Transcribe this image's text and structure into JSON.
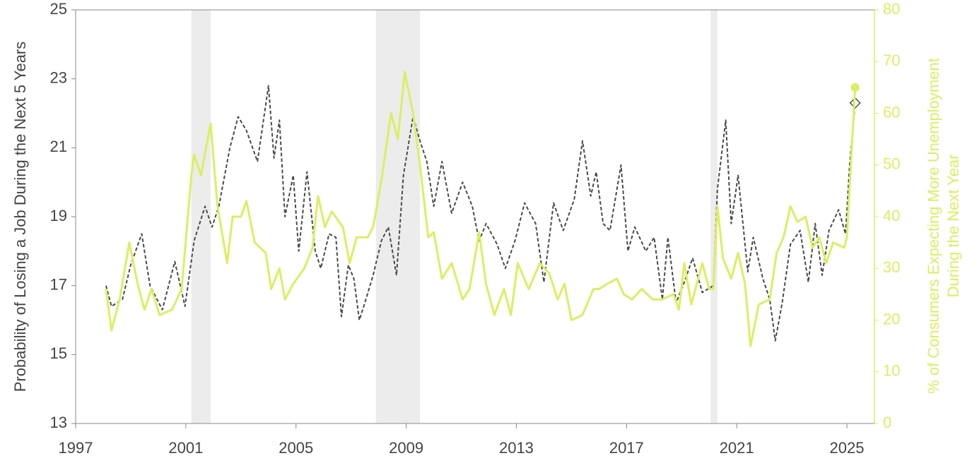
{
  "chart_data": {
    "type": "line",
    "ylabel": "Probability of Losing a Job During the Next 5 Years",
    "y2label": [
      "% of Consumers Expecting More Unemployment",
      "During the Next Year"
    ],
    "xlim": [
      1997,
      2026
    ],
    "xticks": [
      1997,
      2001,
      2005,
      2009,
      2013,
      2017,
      2021,
      2025
    ],
    "ylim": [
      13,
      25
    ],
    "yticks": [
      13,
      15,
      17,
      19,
      21,
      23,
      25
    ],
    "y2lim": [
      0,
      80
    ],
    "y2ticks": [
      0,
      10,
      20,
      30,
      40,
      50,
      60,
      70,
      80
    ],
    "shade_color": "#ececec",
    "shaded_regions": [
      [
        2001.2,
        2001.9
      ],
      [
        2007.9,
        2009.5
      ],
      [
        2020.05,
        2020.3
      ]
    ],
    "series": [
      {
        "color": "#4a4a4a",
        "style": "dashed",
        "axis": "y",
        "end_marker": "diamond",
        "x": [
          1998.1,
          1998.3,
          1998.7,
          1999.0,
          1999.4,
          1999.7,
          2000.15,
          2000.6,
          2000.97,
          2001.3,
          2001.7,
          2001.95,
          2002.2,
          2002.6,
          2002.9,
          2003.2,
          2003.6,
          2004.0,
          2004.2,
          2004.4,
          2004.6,
          2004.9,
          2005.1,
          2005.4,
          2005.7,
          2005.9,
          2006.2,
          2006.45,
          2006.65,
          2006.9,
          2007.1,
          2007.3,
          2007.5,
          2007.8,
          2008.1,
          2008.35,
          2008.65,
          2008.9,
          2009.25,
          2009.5,
          2009.75,
          2010.0,
          2010.3,
          2010.65,
          2011.05,
          2011.4,
          2011.65,
          2011.9,
          2012.3,
          2012.6,
          2012.95,
          2013.3,
          2013.7,
          2014.0,
          2014.35,
          2014.7,
          2015.1,
          2015.4,
          2015.7,
          2015.9,
          2016.15,
          2016.4,
          2016.8,
          2017.05,
          2017.3,
          2017.7,
          2018.0,
          2018.3,
          2018.5,
          2018.8,
          2019.1,
          2019.4,
          2019.75,
          2020.15,
          2020.3,
          2020.6,
          2020.8,
          2021.05,
          2021.4,
          2021.6,
          2021.95,
          2022.2,
          2022.4,
          2022.65,
          2022.95,
          2023.3,
          2023.6,
          2023.85,
          2024.1,
          2024.35,
          2024.7,
          2024.95,
          2025.1,
          2025.3
        ],
        "values": [
          17.0,
          16.4,
          16.6,
          17.6,
          18.5,
          17.0,
          16.3,
          17.7,
          16.4,
          18.3,
          19.3,
          18.7,
          19.3,
          21.0,
          21.9,
          21.5,
          20.6,
          22.8,
          20.7,
          21.8,
          19.0,
          20.2,
          18.0,
          20.3,
          18.0,
          17.5,
          18.5,
          18.4,
          16.1,
          17.6,
          17.2,
          16.0,
          16.5,
          17.3,
          18.3,
          18.7,
          17.3,
          20.2,
          21.9,
          21.2,
          20.6,
          19.3,
          20.6,
          19.1,
          20.0,
          19.3,
          18.3,
          18.8,
          18.2,
          17.5,
          18.3,
          19.4,
          18.8,
          17.1,
          19.4,
          18.6,
          19.5,
          21.2,
          19.6,
          20.3,
          18.8,
          18.6,
          20.5,
          18.0,
          18.7,
          18.0,
          18.4,
          16.6,
          18.4,
          16.5,
          17.1,
          17.8,
          16.8,
          17.0,
          19.8,
          21.8,
          18.8,
          20.2,
          17.4,
          18.4,
          17.2,
          16.6,
          15.4,
          16.5,
          18.2,
          18.6,
          17.1,
          18.8,
          17.3,
          18.6,
          19.2,
          18.5,
          20.5,
          22.3
        ]
      },
      {
        "color": "#dcee62",
        "style": "solid",
        "axis": "y2",
        "end_marker": "circle",
        "x": [
          1998.1,
          1998.3,
          1998.6,
          1998.95,
          1999.25,
          1999.5,
          1999.75,
          2000.05,
          2000.5,
          2000.85,
          2001.2,
          2001.3,
          2001.55,
          2001.9,
          2002.15,
          2002.5,
          2002.7,
          2003.0,
          2003.2,
          2003.5,
          2003.9,
          2004.1,
          2004.4,
          2004.6,
          2004.9,
          2005.3,
          2005.6,
          2005.8,
          2006.05,
          2006.3,
          2006.7,
          2006.95,
          2007.2,
          2007.6,
          2007.8,
          2008.1,
          2008.45,
          2008.7,
          2008.95,
          2009.25,
          2009.5,
          2009.8,
          2010.0,
          2010.3,
          2010.65,
          2011.05,
          2011.3,
          2011.65,
          2011.9,
          2012.2,
          2012.55,
          2012.8,
          2013.05,
          2013.45,
          2013.85,
          2014.2,
          2014.5,
          2014.75,
          2015.0,
          2015.4,
          2015.8,
          2016.0,
          2016.3,
          2016.65,
          2016.9,
          2017.2,
          2017.55,
          2017.95,
          2018.3,
          2018.7,
          2018.9,
          2019.1,
          2019.35,
          2019.75,
          2020.0,
          2020.15,
          2020.3,
          2020.5,
          2020.8,
          2021.05,
          2021.3,
          2021.5,
          2021.8,
          2022.2,
          2022.45,
          2022.7,
          2022.95,
          2023.2,
          2023.5,
          2023.75,
          2024.0,
          2024.25,
          2024.5,
          2024.9,
          2025.0,
          2025.3
        ],
        "values": [
          26,
          18,
          24,
          35,
          27,
          22,
          26,
          21,
          22,
          26,
          48,
          52,
          48,
          58,
          42,
          31,
          40,
          40,
          43,
          35,
          33,
          26,
          30,
          24,
          27,
          30,
          34,
          44,
          38,
          41,
          38,
          31,
          36,
          36,
          38,
          47,
          60,
          55,
          68,
          60,
          50,
          36,
          37,
          28,
          31,
          24,
          26,
          37,
          27,
          21,
          26,
          21,
          31,
          26,
          31,
          29,
          24,
          27,
          20,
          21,
          26,
          26,
          27,
          28,
          25,
          24,
          26,
          24,
          24,
          25,
          22,
          31,
          23,
          31,
          26,
          26,
          42,
          32,
          28,
          33,
          27,
          15,
          23,
          24,
          33,
          36,
          42,
          39,
          40,
          34,
          36,
          31,
          35,
          34,
          36,
          65
        ]
      }
    ]
  }
}
